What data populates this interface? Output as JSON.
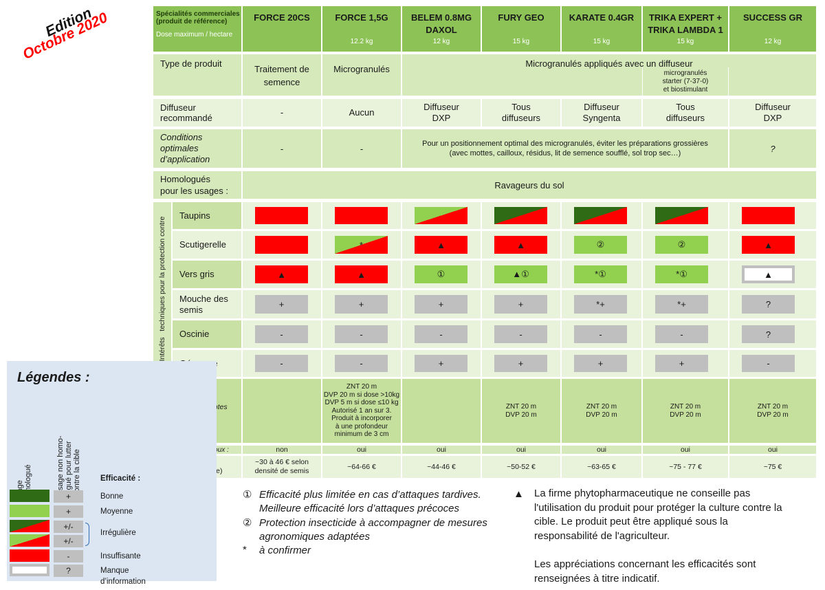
{
  "stamp": {
    "line1": "Edition",
    "line2": "Octobre 2020"
  },
  "table": {
    "corner": {
      "title": "Spécialités commerciales\n(produit de référence)",
      "dose": "Dose maximum / hectare"
    },
    "products": [
      {
        "name": "FORCE 20CS"
      },
      {
        "name": "FORCE 1,5G",
        "dose": "12.2 kg"
      },
      {
        "name": "BELEM 0.8MG\nDAXOL",
        "dose": "12 kg"
      },
      {
        "name": "FURY GEO",
        "dose": "15 kg"
      },
      {
        "name": "KARATE 0.4GR",
        "dose": "15 kg"
      },
      {
        "name": "TRIKA EXPERT +\nTRIKA LAMBDA 1",
        "dose": "15 kg"
      },
      {
        "name": "SUCCESS GR",
        "dose": "12 kg"
      }
    ],
    "type_row": {
      "label": "Type de produit",
      "cells": [
        "Traitement de\nsemence",
        "Microgranulés"
      ],
      "span": "Microgranulés appliqués avec un diffuseur",
      "note": "microgranulés\nstarter (7-37-0)\net biostimulant"
    },
    "diffuser_row": {
      "label": "Diffuseur\nrecommandé",
      "cells": [
        "-",
        "Aucun",
        "Diffuseur\nDXP",
        "Tous\ndiffuseurs",
        "Diffuseur\nSyngenta",
        "Tous\ndiffuseurs",
        "Diffuseur\nDXP"
      ]
    },
    "conditions_row": {
      "label": "Conditions\noptimales\nd’application",
      "cells": [
        "-",
        "-"
      ],
      "span": "Pour un positionnement optimal des microgranulés, éviter les préparations grossières\n(avec mottes, cailloux, résidus, lit de semence soufflé, sol trop sec…)",
      "last": "?"
    },
    "usage_row": {
      "label": "Homologués\npour les usages :",
      "span": "Ravageurs du sol"
    },
    "pest_group": "Intérêts   techniques pour la protection contre",
    "pests": [
      {
        "name": "Taupins",
        "cells": [
          {
            "fill": "red"
          },
          {
            "fill": "red"
          },
          {
            "fill": "light-red"
          },
          {
            "fill": "dark-red"
          },
          {
            "fill": "dark-red"
          },
          {
            "fill": "dark-red"
          },
          {
            "fill": "red"
          }
        ]
      },
      {
        "name": "Scutigerelle",
        "cells": [
          {
            "fill": "red"
          },
          {
            "fill": "light-red",
            "text": "*"
          },
          {
            "fill": "red",
            "text": "▲"
          },
          {
            "fill": "red",
            "text": "▲"
          },
          {
            "fill": "light",
            "text": "②"
          },
          {
            "fill": "light",
            "text": "②"
          },
          {
            "fill": "red",
            "text": "▲"
          }
        ]
      },
      {
        "name": "Vers gris",
        "cells": [
          {
            "fill": "red",
            "text": "▲"
          },
          {
            "fill": "red",
            "text": "▲"
          },
          {
            "fill": "light",
            "text": "①"
          },
          {
            "fill": "light",
            "text": "▲①"
          },
          {
            "fill": "light",
            "text": "*①"
          },
          {
            "fill": "light",
            "text": "*①"
          },
          {
            "fill": "white",
            "text": "▲"
          }
        ]
      },
      {
        "name": "Mouche des\nsemis",
        "cells": [
          {
            "fill": "grey",
            "text": "+"
          },
          {
            "fill": "grey",
            "text": "+"
          },
          {
            "fill": "grey",
            "text": "+"
          },
          {
            "fill": "grey",
            "text": "+"
          },
          {
            "fill": "grey",
            "text": "*+"
          },
          {
            "fill": "grey",
            "text": "*+"
          },
          {
            "fill": "grey",
            "text": "?"
          }
        ]
      },
      {
        "name": "Oscinie",
        "cells": [
          {
            "fill": "grey",
            "text": "-"
          },
          {
            "fill": "grey",
            "text": "-"
          },
          {
            "fill": "grey",
            "text": "-"
          },
          {
            "fill": "grey",
            "text": "-"
          },
          {
            "fill": "grey",
            "text": "-"
          },
          {
            "fill": "grey",
            "text": "-"
          },
          {
            "fill": "grey",
            "text": "?"
          }
        ]
      },
      {
        "name": "Géomyze",
        "cells": [
          {
            "fill": "grey",
            "text": "-"
          },
          {
            "fill": "grey",
            "text": "-"
          },
          {
            "fill": "grey",
            "text": "+"
          },
          {
            "fill": "grey",
            "text": "+"
          },
          {
            "fill": "grey",
            "text": "+"
          },
          {
            "fill": "grey",
            "text": "+"
          },
          {
            "fill": "grey",
            "text": "-"
          }
        ]
      }
    ],
    "constraints_row": {
      "label": "Principales contraintes\nréglementaires",
      "cells": [
        null,
        "ZNT 20 m\nDVP 20 m si dose >10kg\nDVP 5 m si dose ≤10 kg\nAutorisé 1 an sur 3.\nProduit à incorporer\nà une profondeur\nminimum de 3 cm",
        null,
        "ZNT 20 m\nDVP 20 m",
        "ZNT 20 m\nDVP 20 m",
        "ZNT 20 m\nDVP 20 m",
        "ZNT 20 m\nDVP 20 m"
      ]
    },
    "sweetcorn_row": {
      "label": "Autorisé sur maïs doux :",
      "cells": [
        "non",
        "oui",
        "oui",
        "oui",
        "oui",
        "oui",
        "oui"
      ]
    },
    "price_row": {
      "label": "Prix indicatif / Ha\n(dose homologuée)",
      "cells": [
        "~30 à 46 € selon\ndensité de semis",
        "~64-66 €",
        "~44-46 €",
        "~50-52 €",
        "~63-65 €",
        "~75 - 77 €",
        "~75 €"
      ]
    }
  },
  "legend": {
    "title": "Légendes :",
    "col1": "Usage\nhomologué",
    "col2": "Usage non homo-\nlogué pour lutter\ncontre la cible",
    "efficacy": "Efficacité :",
    "items": [
      {
        "fill": "dark",
        "sign": "+",
        "label": "Bonne"
      },
      {
        "fill": "light",
        "sign": "+",
        "label": "Moyenne"
      },
      {
        "fill": "dark-red",
        "sign": "+/-"
      },
      {
        "fill": "light-red",
        "sign": "+/-"
      },
      {
        "fill": "red",
        "sign": "-",
        "label": "Insuffisante"
      },
      {
        "fill": "white",
        "sign": "?",
        "label": "Manque\nd’information"
      }
    ],
    "irregular": "Irrégulière"
  },
  "notes": {
    "left": [
      {
        "symbol": "①",
        "text": "Efficacité plus limitée en cas d’attaques tardives.\nMeilleure efficacité lors d’attaques précoces"
      },
      {
        "symbol": "②",
        "text": "Protection insecticide à accompagner de mesures\nagronomiques adaptées"
      },
      {
        "symbol": "*",
        "text": "à confirmer"
      }
    ],
    "right": {
      "symbol": "▲",
      "text": "La firme phytopharmaceutique ne conseille pas\nl'utilisation du produit pour protéger la culture contre la\ncible. Le produit peut être appliqué sous la\nresponsabilité de l'agriculteur."
    },
    "disclaimer": "Les appréciations concernant les efficacités sont\nrenseignées à titre indicatif."
  }
}
